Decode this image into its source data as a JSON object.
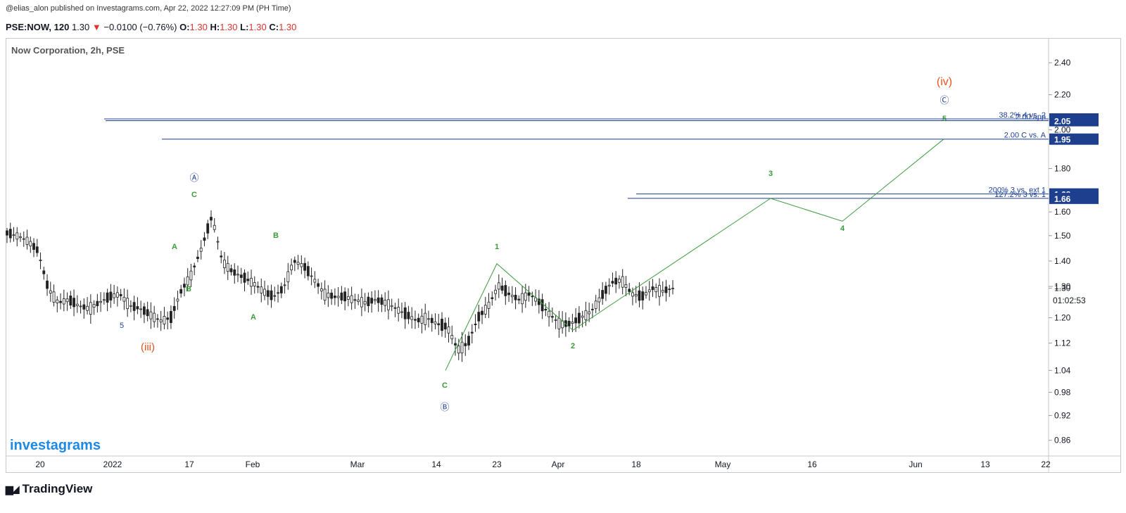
{
  "header": {
    "publisher_line": "@elias_alon published on Investagrams.com, Apr 22, 2022 12:27:09 PM (PH Time)",
    "symbol": "PSE:NOW, 120",
    "last": "1.30",
    "change_arrow": "▼",
    "change": "−0.0100 (−0.76%)",
    "o_label": "O:",
    "o_value": "1.30",
    "h_label": "H:",
    "h_value": "1.30",
    "l_label": "L:",
    "l_value": "1.30",
    "c_label": "C:",
    "c_value": "1.30"
  },
  "footer": {
    "brand": "TradingView",
    "brand_icon": "tradingview-logo-icon"
  },
  "colors": {
    "up": "#26a69a",
    "down": "#ef5350",
    "wave": "#3a9a3a",
    "hline": "#1c3f95",
    "label_bg": "#1d3f8e",
    "iii_iv": "#e8531d",
    "watermark": "#1e88e5"
  },
  "chart_data": {
    "type": "candlestick",
    "title": "Now Corporation, 2h, PSE",
    "watermark": "investagrams",
    "y_scale": "log",
    "ylim": [
      0.84,
      2.48
    ],
    "y_ticks": [
      "2.40",
      "2.20",
      "2.00",
      "1.80",
      "1.60",
      "1.50",
      "1.40",
      "1.30",
      "1.20",
      "1.12",
      "1.04",
      "0.98",
      "0.92",
      "0.86"
    ],
    "x_ticks": [
      "20",
      "2022",
      "17",
      "Feb",
      "Mar",
      "14",
      "23",
      "Apr",
      "18",
      "May",
      "16",
      "Jun",
      "13",
      "22"
    ],
    "current_price": "1.30",
    "countdown": "01:02:53",
    "price_labels": [
      "2.06",
      "2.05",
      "1.95",
      "1.68",
      "1.66"
    ],
    "horizontal_lines": [
      {
        "price": 2.06,
        "label": "38.2% 4 vs. 2"
      },
      {
        "price": 2.05,
        "label": "2.00 app"
      },
      {
        "price": 1.95,
        "label": "2.00 C vs. A"
      },
      {
        "price": 1.68,
        "label": "200% 3 vs. ext 1"
      },
      {
        "price": 1.66,
        "label": "127.2% 3 vs. 1"
      }
    ],
    "wave_projection": [
      {
        "label": "C",
        "price": 1.04
      },
      {
        "label": "1",
        "price": 1.39
      },
      {
        "label": "2",
        "price": 1.16
      },
      {
        "label": "3",
        "price": 1.66
      },
      {
        "label": "4",
        "price": 1.56
      },
      {
        "label": "5",
        "price": 1.95
      }
    ],
    "wave_labels": [
      "5",
      "(iii)",
      "A",
      "B",
      "C",
      "Ⓐ",
      "A",
      "B",
      "C",
      "Ⓑ",
      "1",
      "2",
      "3",
      "4",
      "5",
      "Ⓒ",
      "(iv)"
    ],
    "ohlc_path": [
      1.51,
      1.5,
      1.48,
      1.44,
      1.3,
      1.25,
      1.26,
      1.24,
      1.23,
      1.25,
      1.27,
      1.28,
      1.24,
      1.23,
      1.21,
      1.19,
      1.2,
      1.29,
      1.35,
      1.45,
      1.58,
      1.4,
      1.36,
      1.34,
      1.32,
      1.29,
      1.27,
      1.3,
      1.4,
      1.38,
      1.33,
      1.28,
      1.27,
      1.27,
      1.26,
      1.25,
      1.26,
      1.25,
      1.23,
      1.21,
      1.19,
      1.2,
      1.18,
      1.17,
      1.1,
      1.12,
      1.2,
      1.24,
      1.31,
      1.28,
      1.26,
      1.28,
      1.25,
      1.21,
      1.18,
      1.18,
      1.2,
      1.22,
      1.27,
      1.32,
      1.33,
      1.28,
      1.27,
      1.3,
      1.29,
      1.3
    ]
  }
}
